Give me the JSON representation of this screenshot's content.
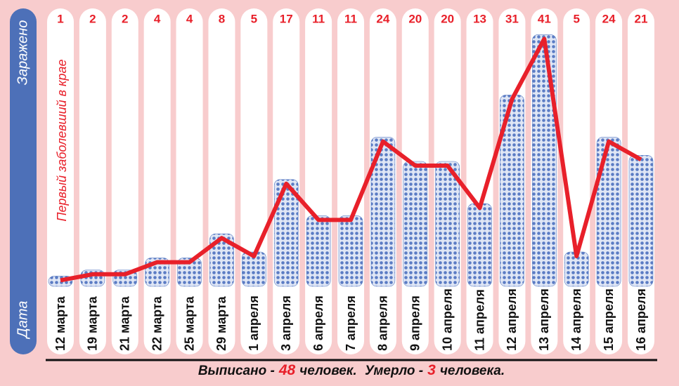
{
  "chart_data": {
    "type": "bar_line",
    "y_axis_label": "Заражено",
    "x_axis_label": "Дата",
    "annotation": "Первый заболевший в крае",
    "categories": [
      "12 марта",
      "19 марта",
      "21 марта",
      "22 марта",
      "25 марта",
      "29 марта",
      "1 апреля",
      "3 апреля",
      "6 апреля",
      "7 апреля",
      "8 апреля",
      "9 апреля",
      "10 апреля",
      "11 апреля",
      "12 апреля",
      "13 апреля",
      "14 апреля",
      "15 апреля",
      "16 апреля"
    ],
    "values": [
      1,
      2,
      2,
      4,
      4,
      8,
      5,
      17,
      11,
      11,
      24,
      20,
      20,
      13,
      31,
      41,
      5,
      24,
      21
    ],
    "bar_color": "#5b7cc4",
    "line_color": "#e8202a",
    "footer": {
      "discharged_label": "Выписано -",
      "discharged": 48,
      "discharged_unit": "человек.",
      "died_label": "Умерло -",
      "died": 3,
      "died_unit": "человека."
    }
  }
}
